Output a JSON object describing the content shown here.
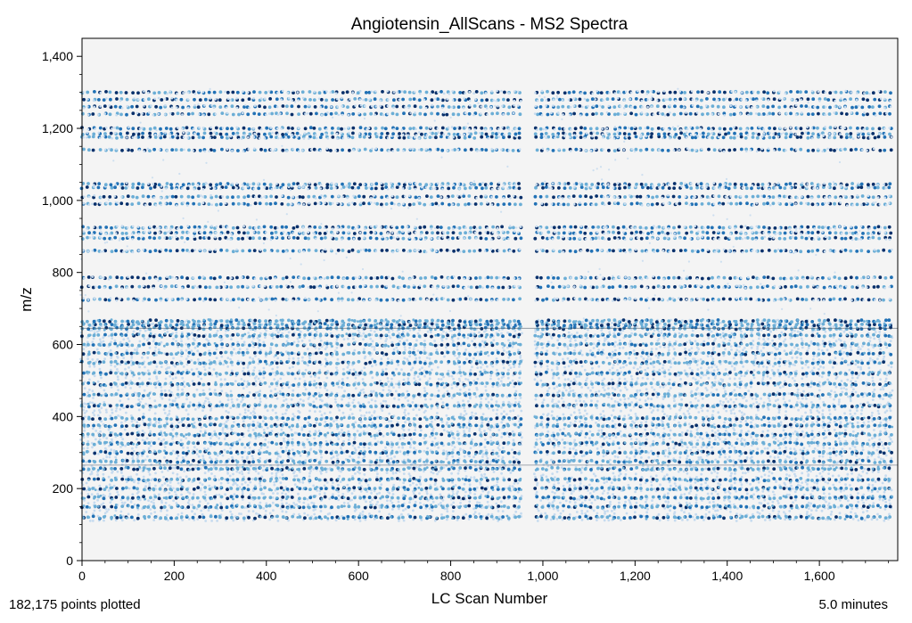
{
  "chart_data": {
    "type": "scatter",
    "title": "Angiotensin_AllScans - MS2 Spectra",
    "xlabel": "LC Scan Number",
    "ylabel": "m/z",
    "xlim": [
      0,
      1770
    ],
    "ylim": [
      0,
      1450
    ],
    "x_ticks": [
      {
        "value": 0,
        "label": "0"
      },
      {
        "value": 200,
        "label": "200"
      },
      {
        "value": 400,
        "label": "400"
      },
      {
        "value": 600,
        "label": "600"
      },
      {
        "value": 800,
        "label": "800"
      },
      {
        "value": 1000,
        "label": "1,000"
      },
      {
        "value": 1200,
        "label": "1,200"
      },
      {
        "value": 1400,
        "label": "1,400"
      },
      {
        "value": 1600,
        "label": "1,600"
      }
    ],
    "y_ticks": [
      {
        "value": 0,
        "label": "0"
      },
      {
        "value": 200,
        "label": "200"
      },
      {
        "value": 400,
        "label": "400"
      },
      {
        "value": 600,
        "label": "600"
      },
      {
        "value": 800,
        "label": "800"
      },
      {
        "value": 1000,
        "label": "1,000"
      },
      {
        "value": 1200,
        "label": "1,200"
      },
      {
        "value": 1400,
        "label": "1,400"
      }
    ],
    "grid": false,
    "legend": "none",
    "colormap": "blues",
    "background": "#f4f4f4",
    "colors": {
      "light": "#c6dbef",
      "mid": "#6baed6",
      "dark": "#2171b5",
      "darkest": "#08306b"
    },
    "scan_range": [
      0,
      1760
    ],
    "scan_gap": [
      955,
      985
    ],
    "mz_range": [
      110,
      1300
    ],
    "dense_bands_mz": [
      120,
      150,
      175,
      200,
      225,
      255,
      275,
      300,
      325,
      350,
      375,
      395,
      430,
      460,
      490,
      520,
      550,
      575,
      600,
      625,
      645,
      655,
      665
    ],
    "sparse_bands_mz": [
      725,
      760,
      785,
      860,
      895,
      910,
      925,
      990,
      1010,
      1035,
      1045,
      1140,
      1175,
      1185,
      1200,
      1240,
      1260,
      1280,
      1300
    ],
    "highlight_lines_mz": [
      265,
      645
    ]
  },
  "footer": {
    "points_plotted": "182,175 points plotted",
    "duration": "5.0 minutes"
  }
}
